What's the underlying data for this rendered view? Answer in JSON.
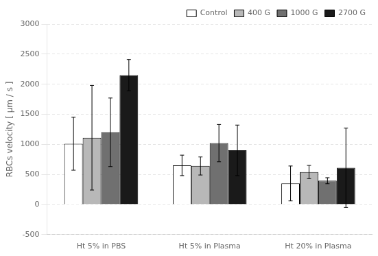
{
  "chart_data": {
    "type": "bar",
    "categories": [
      "Ht 5% in PBS",
      "Ht 5% in Plasma",
      "Ht 20% in Plasma"
    ],
    "series": [
      {
        "name": "Control",
        "color": "#ffffff",
        "values": [
          1010,
          650,
          350
        ],
        "errors": [
          440,
          170,
          290
        ]
      },
      {
        "name": "400 G",
        "color": "#b8b8b8",
        "values": [
          1110,
          640,
          540
        ],
        "errors": [
          870,
          150,
          110
        ]
      },
      {
        "name": "1000 G",
        "color": "#707070",
        "values": [
          1200,
          1020,
          395
        ],
        "errors": [
          570,
          310,
          50
        ]
      },
      {
        "name": "2700 G",
        "color": "#1a1a1a",
        "values": [
          2150,
          900,
          610
        ],
        "errors": [
          260,
          420,
          660
        ]
      }
    ],
    "ylabel": "RBCs velocity [ μm / s ]",
    "ylim": [
      -500,
      3000
    ],
    "yticks": [
      -500,
      0,
      500,
      1000,
      1500,
      2000,
      2500,
      3000
    ],
    "grid": true,
    "legend": "upper right"
  }
}
